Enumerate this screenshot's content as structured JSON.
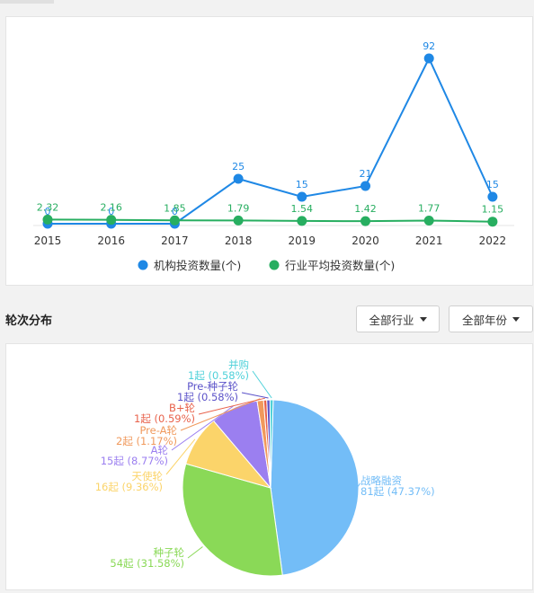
{
  "section": {
    "title": "轮次分布"
  },
  "filters": {
    "industry": "全部行业",
    "year": "全部年份"
  },
  "line_chart": {
    "categories": [
      "2015",
      "2016",
      "2017",
      "2018",
      "2019",
      "2020",
      "2021",
      "2022"
    ],
    "series": [
      {
        "name": "机构投资数量(个)",
        "color": "#1f88e5",
        "values": [
          0,
          0,
          0,
          25,
          15,
          21,
          92,
          15
        ],
        "labels": [
          "0",
          "0",
          "0",
          "25",
          "15",
          "21",
          "92",
          "15"
        ]
      },
      {
        "name": "行业平均投资数量(个)",
        "color": "#27ae60",
        "values": [
          2.32,
          2.16,
          1.85,
          1.79,
          1.54,
          1.42,
          1.77,
          1.15
        ],
        "labels": [
          "2.32",
          "2.16",
          "1.85",
          "1.79",
          "1.54",
          "1.42",
          "1.77",
          "1.15"
        ]
      }
    ]
  },
  "chart_data": {
    "type": "pie",
    "slices": [
      {
        "name": "战略融资",
        "count_label": "81起 (47.37%)",
        "value": 81,
        "color": "#73bdf7"
      },
      {
        "name": "种子轮",
        "count_label": "54起 (31.58%)",
        "value": 54,
        "color": "#8ad957"
      },
      {
        "name": "天使轮",
        "count_label": "16起 (9.36%)",
        "value": 16,
        "color": "#fbd46a"
      },
      {
        "name": "A轮",
        "count_label": "15起 (8.77%)",
        "value": 15,
        "color": "#9b7ff0"
      },
      {
        "name": "Pre-A轮",
        "count_label": "2起 (1.17%)",
        "value": 2,
        "color": "#f0995c"
      },
      {
        "name": "B+轮",
        "count_label": "1起 (0.59%)",
        "value": 1,
        "color": "#e8624b"
      },
      {
        "name": "Pre-种子轮",
        "count_label": "1起 (0.58%)",
        "value": 1,
        "color": "#5b52c9"
      },
      {
        "name": "并购",
        "count_label": "1起 (0.58%)",
        "value": 1,
        "color": "#4fd1d9"
      }
    ]
  }
}
